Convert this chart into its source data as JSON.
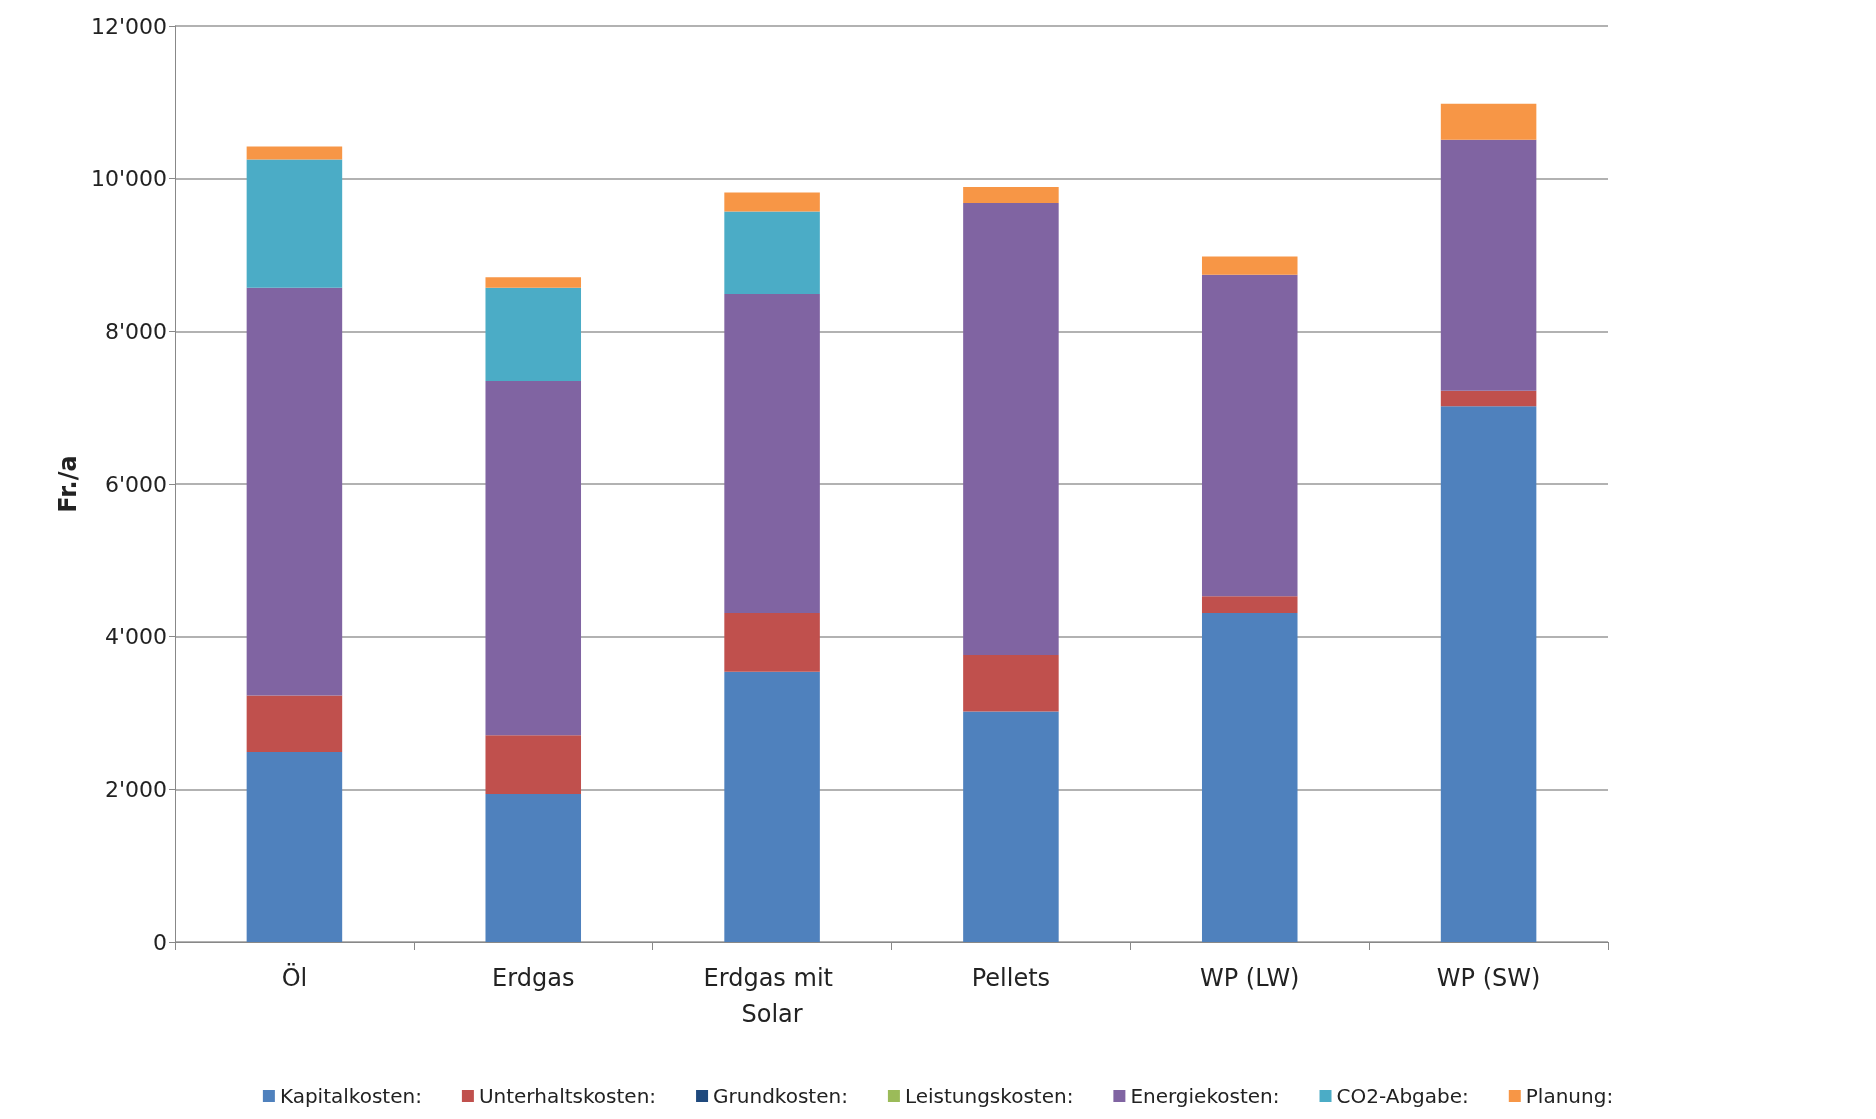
{
  "chart_data": {
    "type": "bar",
    "stacked": true,
    "ylabel": "Fr./a",
    "categories": [
      "Öl",
      "Erdgas",
      "Erdgas mit Solar",
      "Pellets",
      "WP (LW)",
      "WP (SW)"
    ],
    "series": [
      {
        "name": "Kapitalkosten:",
        "color": "#4f81bd",
        "values": [
          2490,
          1940,
          3540,
          3020,
          4310,
          7020
        ]
      },
      {
        "name": "Unterhaltskosten:",
        "color": "#c0504d",
        "values": [
          740,
          770,
          770,
          740,
          220,
          200
        ]
      },
      {
        "name": "Grundkosten:",
        "color": "#1f497d",
        "values": [
          0,
          0,
          0,
          0,
          0,
          0
        ]
      },
      {
        "name": "Leistungskosten:",
        "color": "#9bbb59",
        "values": [
          0,
          0,
          0,
          0,
          0,
          0
        ]
      },
      {
        "name": "Energiekosten:",
        "color": "#8064a2",
        "values": [
          5340,
          4640,
          4180,
          5920,
          4210,
          3290
        ]
      },
      {
        "name": "CO2-Abgabe:",
        "color": "#4bacc6",
        "values": [
          1680,
          1220,
          1080,
          0,
          0,
          0
        ]
      },
      {
        "name": "Planung:",
        "color": "#f79646",
        "values": [
          170,
          140,
          250,
          210,
          240,
          470
        ]
      }
    ],
    "ylim": [
      0,
      12000
    ],
    "yticks": [
      0,
      {
        "value": 2000,
        "label": "2'000"
      },
      {
        "value": 4000,
        "label": "4'000"
      },
      {
        "value": 6000,
        "label": "6'000"
      },
      {
        "value": 8000,
        "label": "8'000"
      },
      {
        "value": 10000,
        "label": "10'000"
      },
      {
        "value": 12000,
        "label": "12'000"
      }
    ],
    "grid": "y",
    "legend": "bottom"
  }
}
